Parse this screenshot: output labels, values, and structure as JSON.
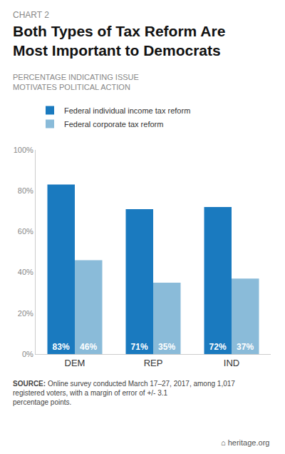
{
  "chart_data": {
    "type": "bar",
    "title": "Both Types of Tax Reform Are\nMost Important to Democrats",
    "subtitle": "PERCENTAGE INDICATING ISSUE\nMOTIVATES POLITICAL ACTION",
    "annotations": [
      "CHART 2",
      "SOURCE:",
      "Online survey conducted March 17–27, 2017, among 1,017 registered voters, with a margin of error of +/- 3.1 percentage points.",
      "⌂ heritage.org"
    ],
    "categories": [
      "DEM",
      "REP",
      "IND"
    ],
    "series": [
      {
        "name": "Federal individual income tax reform",
        "color": "#1a7abf",
        "values": [
          83,
          71,
          72
        ],
        "value_labels": [
          "83%",
          "71%",
          "72%"
        ]
      },
      {
        "name": "Federal corporate tax reform",
        "color": "#8abbd9",
        "values": [
          46,
          35,
          37
        ],
        "value_labels": [
          "46%",
          "35%",
          "37%"
        ]
      }
    ],
    "ylim": [
      0,
      100
    ],
    "yticks": [
      {
        "value": 0,
        "label": "0%"
      },
      {
        "value": 20,
        "label": "20%"
      },
      {
        "value": 40,
        "label": "40%"
      },
      {
        "value": 60,
        "label": "60%"
      },
      {
        "value": 80,
        "label": "80%"
      },
      {
        "value": 100,
        "label": "100%"
      }
    ],
    "grid": false,
    "legend": "upper left",
    "data_labels": true
  }
}
